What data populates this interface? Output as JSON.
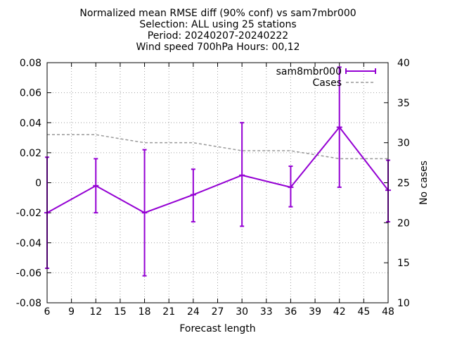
{
  "chart_data": {
    "type": "line",
    "title_lines": [
      "Normalized mean RMSE diff (90% conf) vs sam7mbr000",
      "Selection: ALL using    25 stations",
      "Period: 20240207-20240222",
      "Wind speed 700hPa   Hours: 00,12"
    ],
    "xlabel": "Forecast length",
    "ylabel": "",
    "y2label": "No cases",
    "xlim": [
      6,
      48
    ],
    "ylim": [
      -0.08,
      0.08
    ],
    "y2lim": [
      10,
      40
    ],
    "x_ticks": [
      6,
      9,
      12,
      15,
      18,
      21,
      24,
      27,
      30,
      33,
      36,
      39,
      42,
      45,
      48
    ],
    "y_ticks": [
      "0.08",
      "0.06",
      "0.04",
      "0.02",
      "0",
      "-0.02",
      "-0.04",
      "-0.06",
      "-0.08"
    ],
    "y_tick_values": [
      0.08,
      0.06,
      0.04,
      0.02,
      0,
      -0.02,
      -0.04,
      -0.06,
      -0.08
    ],
    "y2_ticks": [
      40,
      35,
      30,
      25,
      20,
      15,
      10
    ],
    "grid": true,
    "legend_position": "top-right",
    "series": [
      {
        "name": "sam8mbr000",
        "color": "#9400d3",
        "x": [
          6,
          12,
          18,
          24,
          30,
          36,
          42,
          48
        ],
        "y": [
          -0.02,
          -0.002,
          -0.02,
          -0.008,
          0.005,
          -0.003,
          0.037,
          -0.005
        ],
        "err_low": [
          -0.057,
          -0.02,
          -0.062,
          -0.026,
          -0.029,
          -0.016,
          -0.003,
          -0.026
        ],
        "err_high": [
          0.017,
          0.016,
          0.022,
          0.009,
          0.04,
          0.011,
          0.077,
          0.015
        ]
      },
      {
        "name": "Cases",
        "color": "#999999",
        "axis": "y2",
        "x": [
          6,
          12,
          18,
          24,
          30,
          36,
          42,
          48
        ],
        "y": [
          31,
          31,
          30,
          30,
          29,
          29,
          28,
          28
        ]
      }
    ]
  }
}
